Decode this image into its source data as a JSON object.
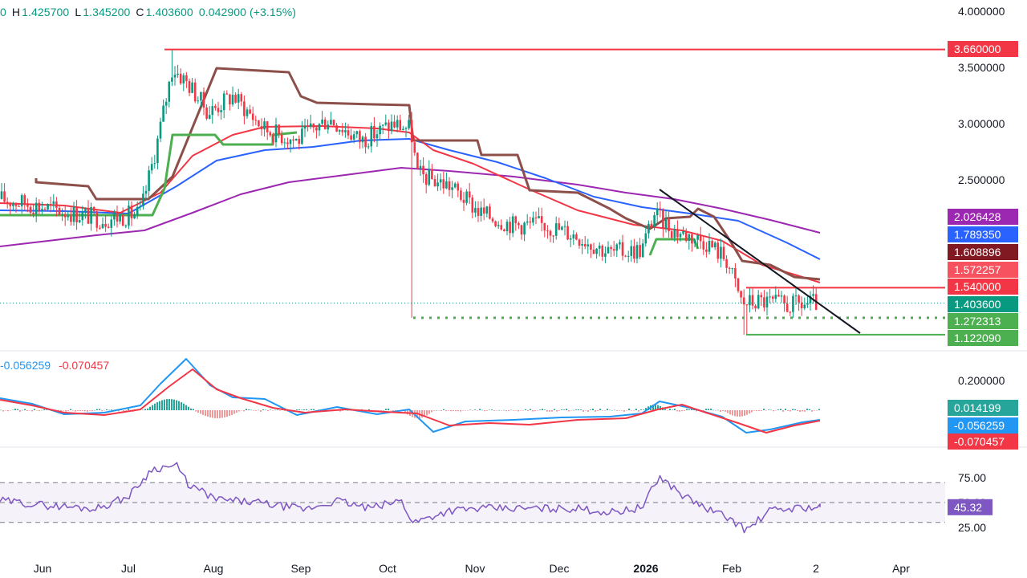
{
  "header": {
    "open_partial": "0",
    "high_label": "H",
    "high": "1.425700",
    "low_label": "L",
    "low": "1.345200",
    "close_label": "C",
    "close": "1.403600",
    "change": "0.042900 (+3.15%)",
    "up_color": "#089981"
  },
  "macd_legend": {
    "macd": "-0.056259",
    "signal": "-0.070457",
    "macd_color": "#2196f3",
    "signal_color": "#f23645"
  },
  "chart_data": {
    "type": "candlestick",
    "x_axis": {
      "tick_labels": [
        "Jun",
        "Jul",
        "Aug",
        "Sep",
        "Oct",
        "Nov",
        "Dec",
        "2026",
        "Feb",
        "2",
        "Apr"
      ]
    },
    "price_pane": {
      "y_tick_labels": [
        "4.000000",
        "3.500000",
        "3.000000",
        "2.500000"
      ],
      "ylim": [
        1.0,
        4.0
      ],
      "last_close": 1.4036,
      "candles_approx": [
        {
          "date": "2025-06-01",
          "open": 2.3,
          "high": 2.45,
          "low": 2.1,
          "close": 2.2
        },
        {
          "date": "2025-06-15",
          "open": 2.2,
          "high": 2.3,
          "low": 2.05,
          "close": 2.15
        },
        {
          "date": "2025-06-25",
          "open": 2.15,
          "high": 2.2,
          "low": 1.95,
          "close": 2.1
        },
        {
          "date": "2025-07-05",
          "open": 2.1,
          "high": 2.35,
          "low": 2.05,
          "close": 2.3
        },
        {
          "date": "2025-07-12",
          "open": 2.3,
          "high": 3.05,
          "low": 2.25,
          "close": 3.0
        },
        {
          "date": "2025-07-18",
          "open": 3.0,
          "high": 3.66,
          "low": 2.95,
          "close": 3.5
        },
        {
          "date": "2025-07-25",
          "open": 3.5,
          "high": 3.62,
          "low": 3.1,
          "close": 3.2
        },
        {
          "date": "2025-08-05",
          "open": 3.2,
          "high": 3.4,
          "low": 2.8,
          "close": 2.95
        },
        {
          "date": "2025-08-15",
          "open": 2.95,
          "high": 3.35,
          "low": 2.9,
          "close": 3.2
        },
        {
          "date": "2025-08-25",
          "open": 3.2,
          "high": 3.25,
          "low": 2.85,
          "close": 2.95
        },
        {
          "date": "2025-09-05",
          "open": 2.95,
          "high": 3.05,
          "low": 2.75,
          "close": 2.85
        },
        {
          "date": "2025-09-15",
          "open": 2.85,
          "high": 3.15,
          "low": 2.8,
          "close": 3.05
        },
        {
          "date": "2025-09-25",
          "open": 3.05,
          "high": 3.1,
          "low": 2.75,
          "close": 2.85
        },
        {
          "date": "2025-10-05",
          "open": 2.85,
          "high": 3.1,
          "low": 2.8,
          "close": 2.95
        },
        {
          "date": "2025-10-10",
          "open": 2.95,
          "high": 3.0,
          "low": 1.27,
          "close": 2.55
        },
        {
          "date": "2025-10-20",
          "open": 2.55,
          "high": 2.65,
          "low": 2.25,
          "close": 2.45
        },
        {
          "date": "2025-11-01",
          "open": 2.45,
          "high": 2.5,
          "low": 2.1,
          "close": 2.25
        },
        {
          "date": "2025-11-15",
          "open": 2.25,
          "high": 2.4,
          "low": 1.95,
          "close": 2.1
        },
        {
          "date": "2025-12-01",
          "open": 2.1,
          "high": 2.25,
          "low": 1.95,
          "close": 2.05
        },
        {
          "date": "2025-12-15",
          "open": 2.05,
          "high": 2.1,
          "low": 1.8,
          "close": 1.85
        },
        {
          "date": "2025-12-28",
          "open": 1.85,
          "high": 1.95,
          "low": 1.8,
          "close": 1.9
        },
        {
          "date": "2026-01-05",
          "open": 1.9,
          "high": 2.38,
          "low": 1.88,
          "close": 2.1
        },
        {
          "date": "2026-01-15",
          "open": 2.1,
          "high": 2.15,
          "low": 1.95,
          "close": 2.0
        },
        {
          "date": "2026-01-25",
          "open": 2.0,
          "high": 2.05,
          "low": 1.75,
          "close": 1.8
        },
        {
          "date": "2026-02-01",
          "open": 1.8,
          "high": 1.85,
          "low": 1.12,
          "close": 1.35
        },
        {
          "date": "2026-02-10",
          "open": 1.35,
          "high": 1.48,
          "low": 1.3,
          "close": 1.4
        },
        {
          "date": "2026-02-20",
          "open": 1.4,
          "high": 1.43,
          "low": 1.33,
          "close": 1.38
        },
        {
          "date": "2026-02-26",
          "open": 1.36,
          "high": 1.43,
          "low": 1.35,
          "close": 1.4
        }
      ],
      "price_tags": [
        {
          "label": "3.660000",
          "value": 3.66,
          "color": "#f23645"
        },
        {
          "label": "2.026428",
          "value": 2.026428,
          "color": "#9c27b0"
        },
        {
          "label": "1.789350",
          "value": 1.78935,
          "color": "#2962ff"
        },
        {
          "label": "1.608896",
          "value": 1.608896,
          "color": "#801922"
        },
        {
          "label": "1.572257",
          "value": 1.572257,
          "color": "#f7525f"
        },
        {
          "label": "1.540000",
          "value": 1.54,
          "color": "#f23645"
        },
        {
          "label": "1.403600",
          "value": 1.4036,
          "color": "#089981"
        },
        {
          "label": "1.272313",
          "value": 1.272313,
          "color": "#4caf50"
        },
        {
          "label": "1.122090",
          "value": 1.12209,
          "color": "#4caf50"
        }
      ]
    },
    "macd_pane": {
      "y_tick_labels": [
        "0.200000"
      ],
      "values": {
        "histogram": 0.014199,
        "macd": -0.056259,
        "signal": -0.070457
      },
      "tags": [
        {
          "label": "0.014199",
          "color": "#26a69a"
        },
        {
          "label": "-0.056259",
          "color": "#2196f3"
        },
        {
          "label": "-0.070457",
          "color": "#f23645"
        }
      ]
    },
    "rsi_pane": {
      "y_tick_labels": [
        "75.00",
        "50.00",
        "25.00"
      ],
      "ylim": [
        15,
        95
      ],
      "bands": [
        30,
        50,
        70
      ],
      "value": 45.32,
      "value_label": "45.32",
      "color": "#7e57c2"
    }
  }
}
